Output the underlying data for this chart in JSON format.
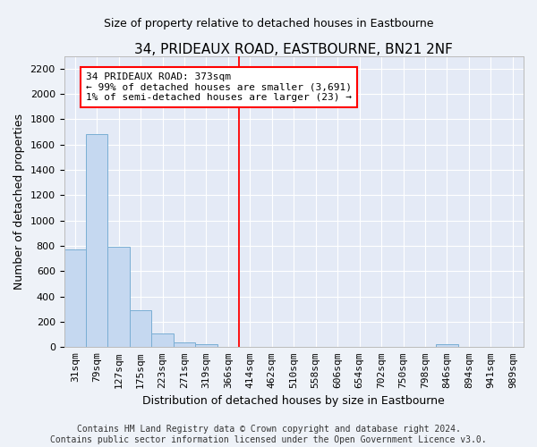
{
  "title": "34, PRIDEAUX ROAD, EASTBOURNE, BN21 2NF",
  "subtitle": "Size of property relative to detached houses in Eastbourne",
  "xlabel": "Distribution of detached houses by size in Eastbourne",
  "ylabel": "Number of detached properties",
  "categories": [
    "31sqm",
    "79sqm",
    "127sqm",
    "175sqm",
    "223sqm",
    "271sqm",
    "319sqm",
    "366sqm",
    "414sqm",
    "462sqm",
    "510sqm",
    "558sqm",
    "606sqm",
    "654sqm",
    "702sqm",
    "750sqm",
    "798sqm",
    "846sqm",
    "894sqm",
    "941sqm",
    "989sqm"
  ],
  "values": [
    770,
    1680,
    795,
    295,
    105,
    38,
    22,
    5,
    2,
    2,
    1,
    0,
    0,
    0,
    0,
    0,
    0,
    20,
    0,
    0,
    0
  ],
  "bar_color": "#c5d8f0",
  "bar_edge_color": "#7aaed4",
  "annotation_line1": "34 PRIDEAUX ROAD: 373sqm",
  "annotation_line2": "← 99% of detached houses are smaller (3,691)",
  "annotation_line3": "1% of semi-detached houses are larger (23) →",
  "vline_bar_index": 7,
  "ylim": [
    0,
    2300
  ],
  "yticks": [
    0,
    200,
    400,
    600,
    800,
    1000,
    1200,
    1400,
    1600,
    1800,
    2000,
    2200
  ],
  "footer_line1": "Contains HM Land Registry data © Crown copyright and database right 2024.",
  "footer_line2": "Contains public sector information licensed under the Open Government Licence v3.0.",
  "bg_color": "#eef2f8",
  "plot_bg_color": "#e4eaf6",
  "title_fontsize": 11,
  "subtitle_fontsize": 9,
  "ylabel_fontsize": 9,
  "xlabel_fontsize": 9,
  "tick_fontsize": 8,
  "annot_fontsize": 8,
  "footer_fontsize": 7
}
